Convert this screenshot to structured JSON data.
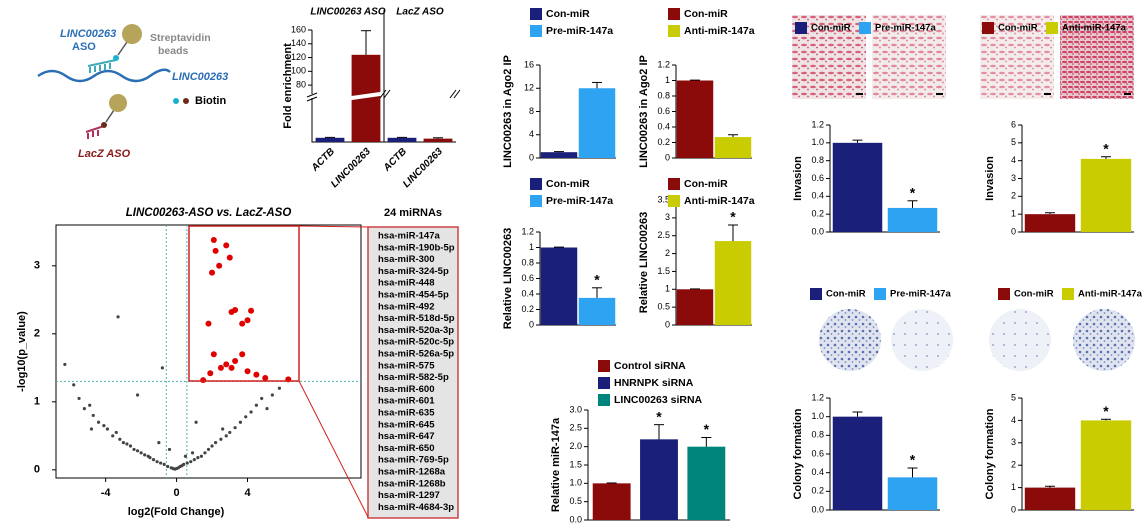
{
  "diagram": {
    "aso_label": [
      "LINC00263",
      "ASO"
    ],
    "bead_label": [
      "Streptavidin",
      "beads"
    ],
    "rna_label": "LINC00263",
    "biotin_label": "Biotin",
    "lacz_label": "LacZ ASO"
  },
  "mirna_list": {
    "title": "24 miRNAs",
    "items": [
      "hsa-miR-147a",
      "hsa-miR-190b-5p",
      "hsa-miR-300",
      "hsa-miR-324-5p",
      "hsa-miR-448",
      "hsa-miR-454-5p",
      "hsa-miR-492",
      "hsa-miR-518d-5p",
      "hsa-miR-520a-3p",
      "hsa-miR-520c-5p",
      "hsa-miR-526a-5p",
      "hsa-miR-575",
      "hsa-miR-582-5p",
      "hsa-miR-600",
      "hsa-miR-601",
      "hsa-miR-635",
      "hsa-miR-645",
      "hsa-miR-647",
      "hsa-miR-650",
      "hsa-miR-769-5p",
      "hsa-miR-1268a",
      "hsa-miR-1268b",
      "hsa-miR-1297",
      "hsa-miR-4684-3p"
    ]
  },
  "chart_data": [
    {
      "type": "broken-bar",
      "ylabel": "Fold enrichment",
      "groups": [
        "LINC00263 ASO",
        "LacZ ASO"
      ],
      "categories": [
        "ACTB",
        "LINC00263",
        "ACTB",
        "LINC00263"
      ],
      "values": [
        1,
        124,
        1,
        0.8
      ],
      "errors": [
        0.1,
        35,
        0.1,
        0.2
      ],
      "colors": [
        "#1a1f7a",
        "#8b0a0a",
        "#1a1f7a",
        "#8b0a0a"
      ],
      "ylim": [
        0,
        160
      ],
      "axis_break": [
        10,
        70
      ],
      "yticks": [
        80,
        100,
        120,
        140,
        160
      ]
    },
    {
      "type": "scatter",
      "title": "LINC00263-ASO vs. LacZ-ASO",
      "xlabel": "log2(Fold Change)",
      "ylabel": "-log10(p_value)",
      "xlim": [
        -6.8,
        10.4
      ],
      "ylim": [
        -0.12,
        3.6
      ],
      "xticks": [
        -4,
        0,
        4
      ],
      "yticks": [
        0,
        1,
        2,
        3
      ],
      "hlines": [
        1.3
      ],
      "vlines": [
        -0.58,
        0.58
      ],
      "series": [
        {
          "color": "#444444",
          "x": [
            -6.3,
            -5.8,
            -5.5,
            -5.2,
            -4.9,
            -4.7,
            -4.4,
            -4.1,
            -3.9,
            -3.6,
            -3.4,
            -3.2,
            -3.0,
            -2.8,
            -2.6,
            -2.4,
            -2.2,
            -2.0,
            -1.8,
            -1.6,
            -1.5,
            -1.3,
            -1.1,
            -0.9,
            -0.7,
            -0.5,
            -0.3,
            -0.2,
            -0.1,
            0,
            0.1,
            0.2,
            0.3,
            0.4,
            0.6,
            0.8,
            1.0,
            1.2,
            1.4,
            1.6,
            1.8,
            2.0,
            2.2,
            2.5,
            2.8,
            3.0,
            3.3,
            3.6,
            3.9,
            4.2,
            4.5,
            4.8,
            5.1,
            5.4,
            5.8,
            -3.3,
            -0.8,
            -2.2,
            1.1,
            -4.8,
            -1.0,
            0.5,
            -0.4,
            0.9,
            2.6
          ],
          "values": [
            1.55,
            1.25,
            1.05,
            0.9,
            0.95,
            0.8,
            0.7,
            0.65,
            0.6,
            0.5,
            0.55,
            0.45,
            0.4,
            0.38,
            0.35,
            0.3,
            0.28,
            0.25,
            0.22,
            0.2,
            0.18,
            0.15,
            0.12,
            0.1,
            0.08,
            0.05,
            0.03,
            0.02,
            0.01,
            0.02,
            0.03,
            0.05,
            0.06,
            0.08,
            0.1,
            0.12,
            0.15,
            0.18,
            0.2,
            0.25,
            0.3,
            0.35,
            0.4,
            0.45,
            0.5,
            0.55,
            0.62,
            0.7,
            0.78,
            0.85,
            0.95,
            1.05,
            0.9,
            1.1,
            1.2,
            2.25,
            1.5,
            1.1,
            0.7,
            0.6,
            0.4,
            0.2,
            0.3,
            0.25,
            0.6
          ]
        },
        {
          "color": "#e00000",
          "x": [
            2.1,
            2.8,
            2.2,
            3.0,
            2.4,
            2.0,
            3.3,
            3.1,
            4.2,
            4.0,
            3.7,
            1.8,
            2.1,
            3.7,
            3.3,
            2.8,
            3.1,
            2.5,
            1.9,
            4.0,
            4.5,
            5.0,
            1.5,
            6.3
          ],
          "values": [
            3.38,
            3.3,
            3.22,
            3.12,
            3.0,
            2.9,
            2.35,
            2.32,
            2.34,
            2.2,
            2.15,
            2.15,
            1.7,
            1.7,
            1.6,
            1.55,
            1.5,
            1.5,
            1.42,
            1.45,
            1.4,
            1.35,
            1.32,
            1.33
          ]
        }
      ]
    },
    {
      "type": "bar",
      "ylabel": "LINC00263 in Ago2 IP",
      "ylim": [
        0,
        16
      ],
      "yticks": [
        0,
        4,
        8,
        12,
        16
      ],
      "series": [
        {
          "name": "Con-miR",
          "color": "#1a1f7a",
          "values": [
            1
          ],
          "errors": [
            0.1
          ]
        },
        {
          "name": "Pre-miR-147a",
          "color": "#2ea3f2",
          "values": [
            12
          ],
          "errors": [
            1
          ]
        }
      ]
    },
    {
      "type": "bar",
      "ylabel": "LINC00263 in Ago2 IP",
      "ylim": [
        0,
        1.2
      ],
      "yticks": [
        0,
        0.2,
        0.4,
        0.6,
        0.8,
        1,
        1.2
      ],
      "series": [
        {
          "name": "Con-miR",
          "color": "#8b0a0a",
          "values": [
            1
          ],
          "errors": [
            0.005
          ]
        },
        {
          "name": "Anti-miR-147a",
          "color": "#c8cc00",
          "values": [
            0.27
          ],
          "errors": [
            0.03
          ]
        }
      ]
    },
    {
      "type": "bar",
      "ylabel": "Relative LINC00263",
      "ylim": [
        0,
        1.2
      ],
      "yticks": [
        0,
        0.2,
        0.4,
        0.6,
        0.8,
        1,
        1.2
      ],
      "series": [
        {
          "name": "Con-miR",
          "color": "#1a1f7a",
          "values": [
            1
          ],
          "errors": [
            0.005
          ]
        },
        {
          "name": "Pre-miR-147a",
          "color": "#2ea3f2",
          "values": [
            0.35
          ],
          "errors": [
            0.13
          ]
        }
      ],
      "annotations": [
        {
          "label": "*",
          "series": "Pre-miR-147a"
        }
      ]
    },
    {
      "type": "bar",
      "ylabel": "Relative LINC00263",
      "ylim": [
        0,
        3.5
      ],
      "yticks": [
        0,
        0.5,
        1,
        1.5,
        2,
        2.5,
        3,
        3.5
      ],
      "series": [
        {
          "name": "Con-miR",
          "color": "#8b0a0a",
          "values": [
            1
          ],
          "errors": [
            0.01
          ]
        },
        {
          "name": "Anti-miR-147a",
          "color": "#c8cc00",
          "values": [
            2.35
          ],
          "errors": [
            0.45
          ]
        }
      ],
      "annotations": [
        {
          "label": "*",
          "series": "Anti-miR-147a"
        }
      ]
    },
    {
      "type": "bar",
      "ylabel": "Relative miR-147a",
      "ylim": [
        0,
        3
      ],
      "yticks": [
        {
          "value": 0,
          "label": "0.0"
        },
        0.5,
        {
          "value": 1,
          "label": "1.0"
        },
        1.5,
        {
          "value": 2,
          "label": "2.0"
        },
        2.5,
        {
          "value": 3,
          "label": "3.0"
        }
      ],
      "series": [
        {
          "name": "Control siRNA",
          "color": "#8b0a0a",
          "values": [
            1
          ],
          "errors": [
            0.01
          ]
        },
        {
          "name": "HNRNPK siRNA",
          "color": "#1a1f7a",
          "values": [
            2.2
          ],
          "errors": [
            0.4
          ]
        },
        {
          "name": "LINC00263 siRNA",
          "color": "#00857c",
          "values": [
            2.0
          ],
          "errors": [
            0.25
          ]
        }
      ],
      "annotations": [
        {
          "label": "*",
          "series": "HNRNPK siRNA"
        },
        {
          "label": "*",
          "series": "LINC00263 siRNA"
        }
      ]
    },
    {
      "type": "bar",
      "ylabel": "Invasion",
      "ylim": [
        0,
        1.2
      ],
      "yticks": [
        {
          "value": 0,
          "label": "0.0"
        },
        0.2,
        0.4,
        0.6,
        0.8,
        {
          "value": 1,
          "label": "1.0"
        },
        1.2
      ],
      "series": [
        {
          "name": "Con-miR",
          "color": "#1a1f7a",
          "values": [
            1.0
          ],
          "errors": [
            0.03
          ]
        },
        {
          "name": "Pre-miR-147a",
          "color": "#2ea3f2",
          "values": [
            0.27
          ],
          "errors": [
            0.08
          ]
        }
      ],
      "annotations": [
        {
          "label": "*",
          "series": "Pre-miR-147a"
        }
      ]
    },
    {
      "type": "bar",
      "ylabel": "Invasion",
      "ylim": [
        0,
        6
      ],
      "yticks": [
        0,
        1,
        2,
        3,
        4,
        5,
        6
      ],
      "series": [
        {
          "name": "Con-miR",
          "color": "#8b0a0a",
          "values": [
            1
          ],
          "errors": [
            0.08
          ]
        },
        {
          "name": "Anti-miR-147a",
          "color": "#c8cc00",
          "values": [
            4.1
          ],
          "errors": [
            0.12
          ]
        }
      ],
      "annotations": [
        {
          "label": "*",
          "series": "Anti-miR-147a"
        }
      ]
    },
    {
      "type": "bar",
      "ylabel": "Colony formation",
      "ylim": [
        0,
        1.2
      ],
      "yticks": [
        {
          "value": 0,
          "label": "0.0"
        },
        0.2,
        0.4,
        0.6,
        0.8,
        {
          "value": 1,
          "label": "1.0"
        },
        1.2
      ],
      "series": [
        {
          "name": "Con-miR",
          "color": "#1a1f7a",
          "values": [
            1.0
          ],
          "errors": [
            0.05
          ]
        },
        {
          "name": "Pre-miR-147a",
          "color": "#2ea3f2",
          "values": [
            0.35
          ],
          "errors": [
            0.1
          ]
        }
      ],
      "annotations": [
        {
          "label": "*",
          "series": "Pre-miR-147a"
        }
      ]
    },
    {
      "type": "bar",
      "ylabel": "Colony formation",
      "ylim": [
        0,
        5
      ],
      "yticks": [
        0,
        1,
        2,
        3,
        4,
        5
      ],
      "series": [
        {
          "name": "Con-miR",
          "color": "#8b0a0a",
          "values": [
            1
          ],
          "errors": [
            0.06
          ]
        },
        {
          "name": "Anti-miR-147a",
          "color": "#c8cc00",
          "values": [
            4.0
          ],
          "errors": [
            0.05
          ]
        }
      ],
      "annotations": [
        {
          "label": "*",
          "series": "Anti-miR-147a"
        }
      ]
    }
  ]
}
